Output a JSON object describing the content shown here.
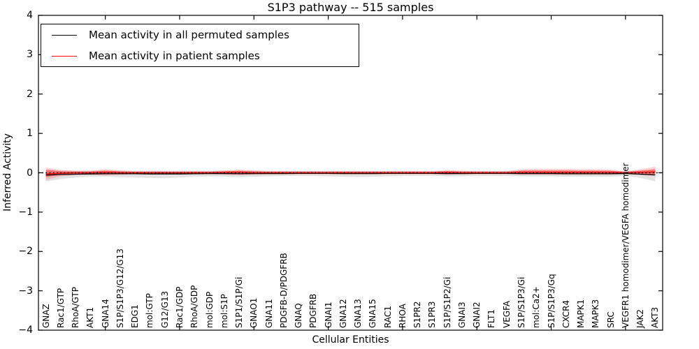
{
  "chart_data": {
    "type": "line",
    "title": "S1P3 pathway -- 515 samples",
    "xlabel": "Cellular Entities",
    "ylabel": "Inferred Activity",
    "ylim": [
      -4,
      4
    ],
    "yticks": [
      4,
      3,
      2,
      1,
      0,
      -1,
      -2,
      -3,
      -4
    ],
    "ytick_labels": [
      "4",
      "3",
      "2",
      "1",
      "0",
      "−1",
      "−2",
      "−3",
      "−4"
    ],
    "grid": false,
    "legend_position": "upper left",
    "legend": [
      {
        "label": "Mean activity in all permuted samples",
        "color": "#000000"
      },
      {
        "label": "Mean activity in patient samples",
        "color": "#ff0000"
      }
    ],
    "categories": [
      "GNAZ",
      "Rac1/GTP",
      "RhoA/GTP",
      "AKT1",
      "GNA14",
      "S1P/S1P3/G12/G13",
      "EDG1",
      "mol:GTP",
      "G12/G13",
      "Rac1/GDP",
      "RhoA/GDP",
      "mol:GDP",
      "mol:S1P",
      "S1P1/S1P/Gi",
      "GNAO1",
      "GNA11",
      "PDGFB-D/PDGFRB",
      "GNAQ",
      "PDGFRB",
      "GNAI1",
      "GNA12",
      "GNA13",
      "GNA15",
      "RAC1",
      "RHOA",
      "S1PR2",
      "S1PR3",
      "S1P/S1P2/Gi",
      "GNAI3",
      "GNAI2",
      "FLT1",
      "VEGFA",
      "S1P/S1P3/Gi",
      "mol:Ca2+",
      "S1P/S1P3/Gq",
      "CXCR4",
      "MAPK1",
      "MAPK3",
      "SRC",
      "VEGFR1 homodimer/VEGFA homodimer",
      "JAK2",
      "AKT3"
    ],
    "series": [
      {
        "name": "Mean activity in all permuted samples",
        "type": "line",
        "color": "#000000",
        "width": 1.3,
        "values": [
          -0.06,
          -0.045,
          -0.035,
          -0.03,
          -0.025,
          -0.025,
          -0.025,
          -0.03,
          -0.03,
          -0.03,
          -0.025,
          -0.02,
          -0.02,
          -0.025,
          -0.02,
          -0.02,
          -0.02,
          -0.015,
          -0.015,
          -0.015,
          -0.02,
          -0.02,
          -0.02,
          -0.015,
          -0.015,
          -0.015,
          -0.015,
          -0.02,
          -0.02,
          -0.015,
          -0.015,
          -0.015,
          -0.02,
          -0.02,
          -0.02,
          -0.025,
          -0.025,
          -0.025,
          -0.025,
          -0.02,
          -0.035,
          -0.055
        ]
      },
      {
        "name": "Mean activity in patient samples",
        "type": "line",
        "color": "#ff0000",
        "width": 1.5,
        "values": [
          -0.03,
          -0.01,
          0,
          0,
          0.01,
          0,
          0,
          0,
          0,
          0,
          0,
          0,
          0.01,
          0.01,
          0,
          0,
          0,
          0,
          0,
          0,
          0,
          0,
          0,
          0,
          0,
          0,
          0,
          0.01,
          0,
          0,
          0,
          0,
          0.01,
          0.01,
          0.01,
          0.01,
          0.01,
          0.01,
          0.01,
          0,
          0.01,
          0.02
        ]
      },
      {
        "name": "Permuted samples activity range",
        "type": "band",
        "color": "#8c8c8c",
        "opacity": 0.25,
        "upper": [
          0.06,
          0.055,
          0.05,
          0.05,
          0.05,
          0.05,
          0.05,
          0.05,
          0.05,
          0.05,
          0.05,
          0.05,
          0.05,
          0.05,
          0.05,
          0.045,
          0.045,
          0.045,
          0.045,
          0.045,
          0.045,
          0.045,
          0.045,
          0.045,
          0.045,
          0.045,
          0.045,
          0.045,
          0.045,
          0.045,
          0.045,
          0.045,
          0.05,
          0.05,
          0.05,
          0.05,
          0.05,
          0.05,
          0.05,
          0.045,
          0.055,
          0.07
        ],
        "lower": [
          -0.22,
          -0.16,
          -0.12,
          -0.1,
          -0.1,
          -0.11,
          -0.12,
          -0.13,
          -0.14,
          -0.12,
          -0.1,
          -0.09,
          -0.1,
          -0.11,
          -0.1,
          -0.09,
          -0.08,
          -0.08,
          -0.08,
          -0.09,
          -0.1,
          -0.11,
          -0.1,
          -0.09,
          -0.08,
          -0.08,
          -0.08,
          -0.09,
          -0.09,
          -0.08,
          -0.08,
          -0.08,
          -0.09,
          -0.09,
          -0.09,
          -0.1,
          -0.1,
          -0.1,
          -0.1,
          -0.08,
          -0.13,
          -0.22
        ]
      },
      {
        "name": "Patient samples activity range (outer)",
        "type": "band",
        "color": "#ff0000",
        "opacity": 0.18,
        "upper": [
          0.13,
          0.07,
          0.05,
          0.05,
          0.09,
          0.06,
          0.04,
          0.04,
          0.04,
          0.04,
          0.04,
          0.04,
          0.06,
          0.08,
          0.06,
          0.04,
          0.04,
          0.04,
          0.04,
          0.04,
          0.04,
          0.04,
          0.04,
          0.04,
          0.04,
          0.04,
          0.04,
          0.07,
          0.05,
          0.04,
          0.04,
          0.04,
          0.09,
          0.1,
          0.1,
          0.1,
          0.09,
          0.09,
          0.08,
          0.03,
          0.09,
          0.15
        ],
        "lower": [
          -0.18,
          -0.09,
          -0.06,
          -0.05,
          -0.07,
          -0.05,
          -0.04,
          -0.04,
          -0.04,
          -0.04,
          -0.04,
          -0.04,
          -0.05,
          -0.06,
          -0.05,
          -0.04,
          -0.04,
          -0.04,
          -0.04,
          -0.04,
          -0.04,
          -0.04,
          -0.04,
          -0.04,
          -0.04,
          -0.04,
          -0.04,
          -0.05,
          -0.04,
          -0.04,
          -0.04,
          -0.04,
          -0.05,
          -0.05,
          -0.05,
          -0.05,
          -0.05,
          -0.05,
          -0.05,
          -0.03,
          -0.06,
          -0.08
        ]
      },
      {
        "name": "Patient samples activity range (inner)",
        "type": "band",
        "color": "#ff0000",
        "opacity": 0.38,
        "upper": [
          0.08,
          0.04,
          0.03,
          0.03,
          0.055,
          0.035,
          0.025,
          0.025,
          0.025,
          0.025,
          0.025,
          0.025,
          0.035,
          0.05,
          0.035,
          0.025,
          0.025,
          0.025,
          0.025,
          0.025,
          0.025,
          0.025,
          0.025,
          0.025,
          0.025,
          0.025,
          0.025,
          0.04,
          0.03,
          0.025,
          0.025,
          0.025,
          0.055,
          0.06,
          0.06,
          0.06,
          0.055,
          0.055,
          0.05,
          0.02,
          0.055,
          0.09
        ],
        "lower": [
          -0.11,
          -0.05,
          -0.035,
          -0.03,
          -0.04,
          -0.03,
          -0.025,
          -0.025,
          -0.025,
          -0.025,
          -0.025,
          -0.025,
          -0.03,
          -0.035,
          -0.03,
          -0.025,
          -0.025,
          -0.025,
          -0.025,
          -0.025,
          -0.025,
          -0.025,
          -0.025,
          -0.025,
          -0.025,
          -0.025,
          -0.025,
          -0.03,
          -0.025,
          -0.025,
          -0.025,
          -0.025,
          -0.03,
          -0.03,
          -0.03,
          -0.03,
          -0.03,
          -0.03,
          -0.03,
          -0.02,
          -0.035,
          -0.05
        ]
      }
    ],
    "zero_line": {
      "y": 0,
      "style": "dotted",
      "color": "#000000"
    }
  }
}
